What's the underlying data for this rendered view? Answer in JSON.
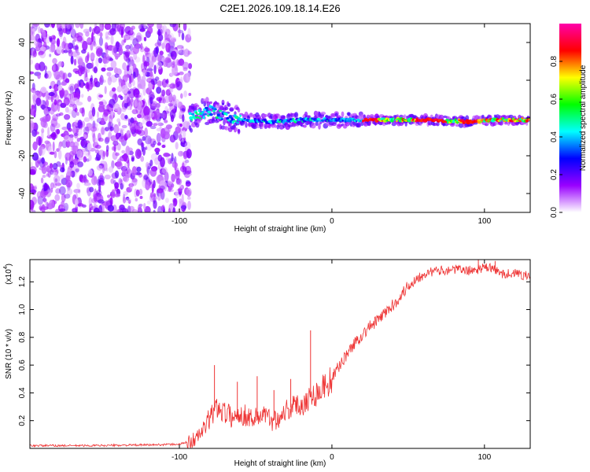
{
  "figure_title": "C2E1.2026.109.18.14.E26",
  "chart_data": [
    {
      "type": "heatmap",
      "title": "C2E1.2026.109.18.14.E26",
      "xlabel": "Height of straight line (km)",
      "ylabel": "Frequency (Hz)",
      "xlim": [
        -198,
        130
      ],
      "ylim": [
        -50,
        50
      ],
      "x_ticks": [
        -100,
        0,
        100
      ],
      "x_tick_labels": [
        "-100",
        "0",
        "100"
      ],
      "y_ticks": [
        -40,
        -20,
        0,
        20,
        40
      ],
      "y_tick_labels": [
        "-40",
        "-20",
        "0",
        "20",
        "40"
      ],
      "grid": false,
      "noise_region_x": [
        -198,
        -93
      ],
      "signal_ridge": {
        "x": [
          -93,
          -80,
          -70,
          -60,
          -40,
          -20,
          0,
          20,
          60,
          90,
          110,
          130
        ],
        "frequency": [
          0,
          4,
          1,
          -1,
          -2,
          -1,
          -1,
          -1,
          -1,
          -2,
          -1,
          -1
        ]
      },
      "colorbar": {
        "label": "Normalized spectral amplitude",
        "range": [
          0.0,
          1.0
        ],
        "ticks": [
          0.0,
          0.2,
          0.4,
          0.6,
          0.8
        ],
        "tick_labels": [
          "0.0",
          "0.2",
          "0.4",
          "0.6",
          "0.8"
        ],
        "colormap": [
          "#ffffff",
          "#9900ff",
          "#0000ff",
          "#00ffff",
          "#00ff00",
          "#ffff00",
          "#ff0000",
          "#ff00aa"
        ]
      }
    },
    {
      "type": "line",
      "xlabel": "Height of straight line (km)",
      "ylabel": "SNR (10 * v/v)",
      "y_scale_label": "(x10",
      "y_scale_exponent": "4",
      "y_scale_suffix": ")",
      "xlim": [
        -198,
        130
      ],
      "ylim": [
        0,
        1.36
      ],
      "x_ticks": [
        -100,
        0,
        100
      ],
      "x_tick_labels": [
        "-100",
        "0",
        "100"
      ],
      "y_ticks": [
        0.2,
        0.4,
        0.6,
        0.8,
        1.0,
        1.2
      ],
      "y_tick_labels": [
        "0.2",
        "0.4",
        "0.6",
        "0.8",
        "1.0",
        "1.2"
      ],
      "grid": false,
      "series": [
        {
          "name": "SNR",
          "color": "#ee3333",
          "x": [
            -198,
            -160,
            -120,
            -100,
            -90,
            -85,
            -80,
            -75,
            -70,
            -65,
            -60,
            -55,
            -50,
            -45,
            -40,
            -35,
            -30,
            -25,
            -20,
            -15,
            -10,
            -5,
            0,
            5,
            10,
            15,
            20,
            25,
            30,
            35,
            40,
            45,
            50,
            55,
            60,
            70,
            80,
            90,
            100,
            105,
            110,
            120,
            130
          ],
          "y": [
            0.02,
            0.02,
            0.025,
            0.03,
            0.06,
            0.12,
            0.22,
            0.3,
            0.26,
            0.22,
            0.25,
            0.23,
            0.22,
            0.25,
            0.2,
            0.22,
            0.28,
            0.3,
            0.32,
            0.36,
            0.4,
            0.45,
            0.5,
            0.6,
            0.68,
            0.76,
            0.82,
            0.88,
            0.92,
            0.98,
            1.03,
            1.1,
            1.17,
            1.22,
            1.26,
            1.28,
            1.29,
            1.28,
            1.3,
            1.3,
            1.26,
            1.26,
            1.24
          ]
        }
      ],
      "annotations": [
        {
          "x": -77,
          "y": 0.6
        },
        {
          "x": -62,
          "y": 0.48
        },
        {
          "x": -49,
          "y": 0.52
        },
        {
          "x": -38,
          "y": 0.42
        },
        {
          "x": -27,
          "y": 0.5
        },
        {
          "x": -14,
          "y": 0.85
        },
        {
          "x": 96,
          "y": 1.36
        },
        {
          "x": 107,
          "y": 1.35
        }
      ]
    }
  ]
}
